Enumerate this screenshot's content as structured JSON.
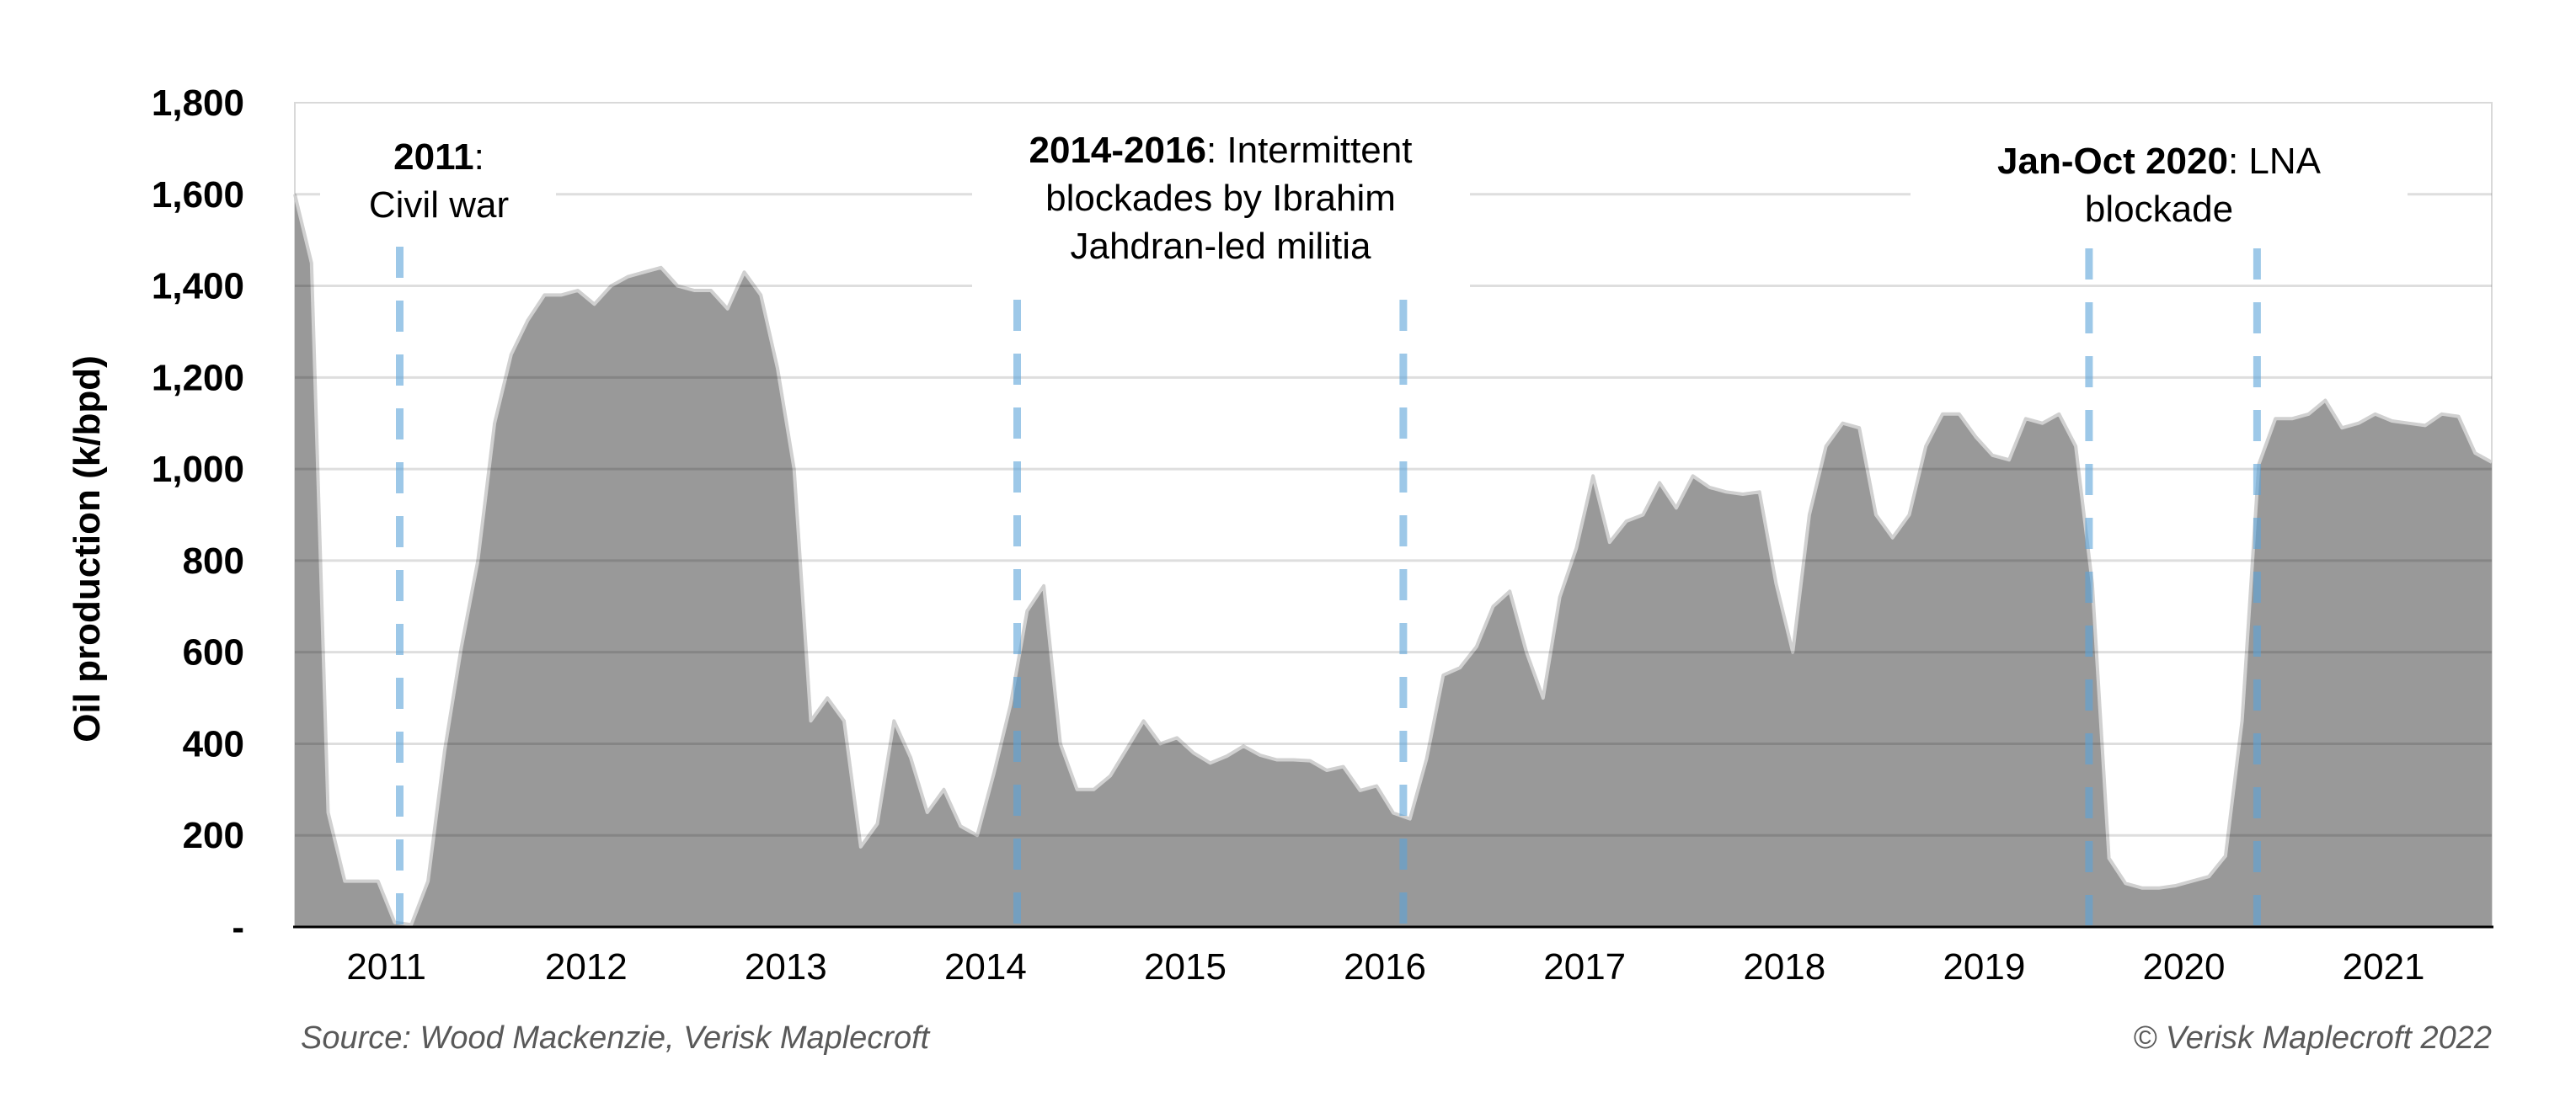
{
  "chart_data": {
    "type": "area",
    "ylabel": "Oil production (k/bpd)",
    "ylim": [
      0,
      1800
    ],
    "y_ticks": [
      0,
      200,
      400,
      600,
      800,
      1000,
      1200,
      1400,
      1600,
      1800
    ],
    "y_tick_labels": [
      "-",
      "200",
      "400",
      "600",
      "800",
      "1,000",
      "1,200",
      "1,400",
      "1,600",
      "1,800"
    ],
    "x_tick_labels": [
      "2011",
      "2012",
      "2013",
      "2014",
      "2015",
      "2016",
      "2017",
      "2018",
      "2019",
      "2020",
      "2021"
    ],
    "grid": "horizontal",
    "fill_color": "#999999",
    "outline_color": "#d0d0d0",
    "marker_line_color": "#5ba3d9",
    "x": [
      "2011-01",
      "2011-02",
      "2011-03",
      "2011-04",
      "2011-05",
      "2011-06",
      "2011-07",
      "2011-08",
      "2011-09",
      "2011-10",
      "2011-11",
      "2011-12",
      "2012-01",
      "2012-02",
      "2012-03",
      "2012-04",
      "2012-05",
      "2012-06",
      "2012-07",
      "2012-08",
      "2012-09",
      "2012-10",
      "2012-11",
      "2012-12",
      "2013-01",
      "2013-02",
      "2013-03",
      "2013-04",
      "2013-05",
      "2013-06",
      "2013-07",
      "2013-08",
      "2013-09",
      "2013-10",
      "2013-11",
      "2013-12",
      "2014-01",
      "2014-02",
      "2014-03",
      "2014-04",
      "2014-05",
      "2014-06",
      "2014-07",
      "2014-08",
      "2014-09",
      "2014-10",
      "2014-11",
      "2014-12",
      "2015-01",
      "2015-02",
      "2015-03",
      "2015-04",
      "2015-05",
      "2015-06",
      "2015-07",
      "2015-08",
      "2015-09",
      "2015-10",
      "2015-11",
      "2015-12",
      "2016-01",
      "2016-02",
      "2016-03",
      "2016-04",
      "2016-05",
      "2016-06",
      "2016-07",
      "2016-08",
      "2016-09",
      "2016-10",
      "2016-11",
      "2016-12",
      "2017-01",
      "2017-02",
      "2017-03",
      "2017-04",
      "2017-05",
      "2017-06",
      "2017-07",
      "2017-08",
      "2017-09",
      "2017-10",
      "2017-11",
      "2017-12",
      "2018-01",
      "2018-02",
      "2018-03",
      "2018-04",
      "2018-05",
      "2018-06",
      "2018-07",
      "2018-08",
      "2018-09",
      "2018-10",
      "2018-11",
      "2018-12",
      "2019-01",
      "2019-02",
      "2019-03",
      "2019-04",
      "2019-05",
      "2019-06",
      "2019-07",
      "2019-08",
      "2019-09",
      "2019-10",
      "2019-11",
      "2019-12",
      "2020-01",
      "2020-02",
      "2020-03",
      "2020-04",
      "2020-05",
      "2020-06",
      "2020-07",
      "2020-08",
      "2020-09",
      "2020-10",
      "2020-11",
      "2020-12",
      "2021-01",
      "2021-02",
      "2021-03",
      "2021-04",
      "2021-05",
      "2021-06",
      "2021-07",
      "2021-08",
      "2021-09",
      "2021-10",
      "2021-11",
      "2021-12",
      "2022-01"
    ],
    "values": [
      1600,
      1450,
      250,
      100,
      100,
      100,
      10,
      5,
      100,
      385,
      610,
      800,
      1100,
      1250,
      1325,
      1380,
      1380,
      1390,
      1360,
      1400,
      1420,
      1430,
      1440,
      1400,
      1390,
      1390,
      1350,
      1430,
      1380,
      1220,
      1000,
      450,
      500,
      450,
      175,
      225,
      450,
      370,
      250,
      300,
      220,
      200,
      335,
      485,
      690,
      745,
      400,
      300,
      300,
      330,
      390,
      450,
      400,
      413,
      380,
      358,
      373,
      395,
      375,
      365,
      365,
      363,
      342,
      350,
      298,
      308,
      249,
      236,
      367,
      550,
      566,
      612,
      700,
      733,
      600,
      500,
      720,
      827,
      985,
      840,
      886,
      900,
      970,
      915,
      985,
      960,
      950,
      945,
      950,
      750,
      600,
      900,
      1050,
      1100,
      1090,
      900,
      850,
      900,
      1050,
      1120,
      1120,
      1070,
      1030,
      1020,
      1110,
      1100,
      1120,
      1050,
      750,
      150,
      95,
      85,
      85,
      90,
      100,
      110,
      155,
      450,
      1010,
      1110,
      1110,
      1120,
      1150,
      1090,
      1100,
      1120,
      1105,
      1100,
      1095,
      1120,
      1115,
      1035,
      1015
    ],
    "event_lines": [
      "2011-07-10",
      "2014-08-13",
      "2016-07-19",
      "2019-12-25",
      "2020-10-28"
    ],
    "annotations": [
      {
        "lines": [
          {
            "b": "2011",
            "t": ":"
          },
          {
            "b": "",
            "t": "Civil war"
          }
        ]
      },
      {
        "lines": [
          {
            "b": "2014-2016",
            "t": ": Intermittent"
          },
          {
            "b": "",
            "t": "blockades by Ibrahim"
          },
          {
            "b": "",
            "t": "Jahdran-led militia"
          }
        ]
      },
      {
        "lines": [
          {
            "b": "Jan-Oct 2020",
            "t": ": LNA"
          },
          {
            "b": "",
            "t": "blockade"
          }
        ]
      }
    ]
  },
  "footer": {
    "source": "Source: Wood Mackenzie, Verisk Maplecroft",
    "copyright": "© Verisk Maplecroft 2022"
  }
}
